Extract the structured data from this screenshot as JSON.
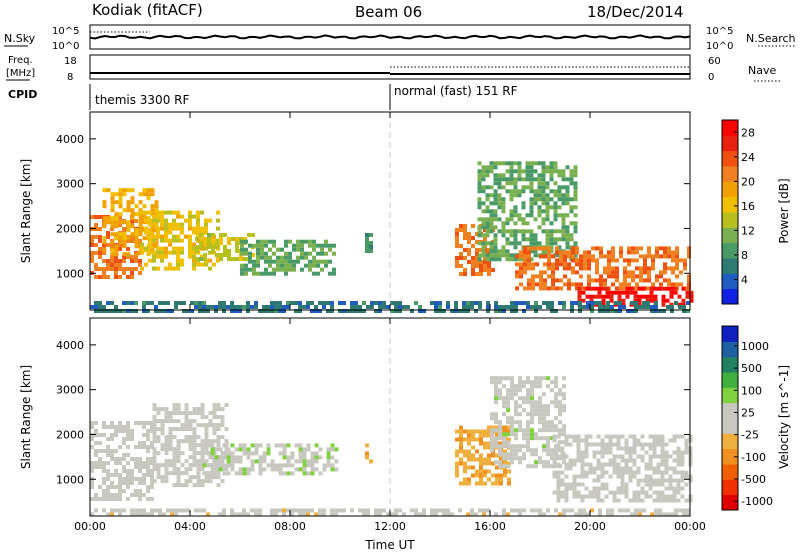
{
  "header": {
    "station": "Kodiak (fitACF)",
    "beam": "Beam 06",
    "date": "18/Dec/2014"
  },
  "panels": {
    "nsky_label": "N.Sky",
    "nsearch_label": "N.Search",
    "nsky_ticks": [
      "10^5",
      "10^0"
    ],
    "nsearch_ticks": [
      "10^5",
      "10^0"
    ],
    "freq_label_1": "Freq.",
    "freq_label_2": "[MHz]",
    "freq_ticks": [
      "18",
      "8"
    ],
    "nave_label": "Nave",
    "nave_ticks": [
      "60",
      "0"
    ],
    "cpid_label": "CPID",
    "cpid_segments": [
      "themis 3300 RF",
      "normal (fast) 151 RF"
    ]
  },
  "chart_data": [
    {
      "type": "heatmap",
      "title": "",
      "xlabel": "",
      "ylabel": "Slant Range [km]",
      "xlim": [
        0,
        24
      ],
      "ylim": [
        180,
        4600
      ],
      "x_ticks": [
        "00:00",
        "04:00",
        "08:00",
        "12:00",
        "16:00",
        "20:00",
        "00:00"
      ],
      "y_ticks": [
        1000,
        2000,
        3000,
        4000
      ],
      "colorbar": {
        "label": "Power [dB]",
        "ticks": [
          4,
          8,
          12,
          16,
          20,
          24,
          28
        ],
        "range": [
          0,
          30
        ],
        "colors": [
          "#1020e0",
          "#205cc0",
          "#2e7a70",
          "#4a9a68",
          "#7bb050",
          "#b8c020",
          "#f0c000",
          "#f0a000",
          "#f08020",
          "#f05010",
          "#e82010",
          "#ff0000"
        ]
      },
      "regions": [
        {
          "t0": 0.0,
          "t1": 2.0,
          "r0": 900,
          "r1": 2300,
          "v": 22
        },
        {
          "t0": 0.5,
          "t1": 2.7,
          "r0": 1400,
          "r1": 2900,
          "v": 18
        },
        {
          "t0": 2.0,
          "t1": 5.2,
          "r0": 1100,
          "r1": 2400,
          "v": 16
        },
        {
          "t0": 4.2,
          "t1": 6.5,
          "r0": 1300,
          "r1": 1900,
          "v": 14
        },
        {
          "t0": 6.0,
          "t1": 9.8,
          "r0": 1000,
          "r1": 1750,
          "v": 10
        },
        {
          "t0": 11.0,
          "t1": 11.3,
          "r0": 1500,
          "r1": 1900,
          "v": 8
        },
        {
          "t0": 14.6,
          "t1": 16.2,
          "r0": 1000,
          "r1": 2100,
          "v": 22
        },
        {
          "t0": 15.5,
          "t1": 19.5,
          "r0": 1300,
          "r1": 3500,
          "v": 10
        },
        {
          "t0": 17.0,
          "t1": 24.0,
          "r0": 700,
          "r1": 1600,
          "v": 22
        },
        {
          "t0": 19.5,
          "t1": 24.0,
          "r0": 300,
          "r1": 700,
          "v": 28
        },
        {
          "t0": 0.0,
          "t1": 24.0,
          "r0": 200,
          "r1": 380,
          "v": 6
        }
      ]
    },
    {
      "type": "heatmap",
      "title": "",
      "xlabel": "Time UT",
      "ylabel": "Slant Range [km]",
      "xlim": [
        0,
        24
      ],
      "ylim": [
        180,
        4600
      ],
      "x_ticks": [
        "00:00",
        "04:00",
        "08:00",
        "12:00",
        "16:00",
        "20:00",
        "00:00"
      ],
      "y_ticks": [
        1000,
        2000,
        3000,
        4000
      ],
      "colorbar": {
        "label": "Velocity [m s^-1]",
        "ticks": [
          "1000",
          "500",
          "100",
          "25",
          "-25",
          "-100",
          "-500",
          "-1000"
        ],
        "range": [
          -1000,
          1000
        ],
        "colors": [
          "#e00000",
          "#f03000",
          "#f06000",
          "#f09020",
          "#f0b040",
          "#c8c8c0",
          "#c8c8c0",
          "#80d040",
          "#40b040",
          "#208060",
          "#2060a0",
          "#1020c0"
        ]
      },
      "regions": [
        {
          "t0": 0.0,
          "t1": 2.5,
          "r0": 600,
          "r1": 2300,
          "v": 0
        },
        {
          "t0": 2.5,
          "t1": 5.5,
          "r0": 900,
          "r1": 2700,
          "v": 0
        },
        {
          "t0": 4.5,
          "t1": 9.8,
          "r0": 1100,
          "r1": 1800,
          "v": 100
        },
        {
          "t0": 11.0,
          "t1": 11.3,
          "r0": 1400,
          "r1": 1800,
          "v": -300
        },
        {
          "t0": 14.6,
          "t1": 16.8,
          "r0": 900,
          "r1": 2200,
          "v": -300
        },
        {
          "t0": 16.0,
          "t1": 19.0,
          "r0": 1300,
          "r1": 3300,
          "v": 60
        },
        {
          "t0": 18.5,
          "t1": 24.0,
          "r0": 500,
          "r1": 2000,
          "v": 0
        },
        {
          "t0": 0.0,
          "t1": 24.0,
          "r0": 200,
          "r1": 350,
          "v": -60
        }
      ]
    }
  ]
}
